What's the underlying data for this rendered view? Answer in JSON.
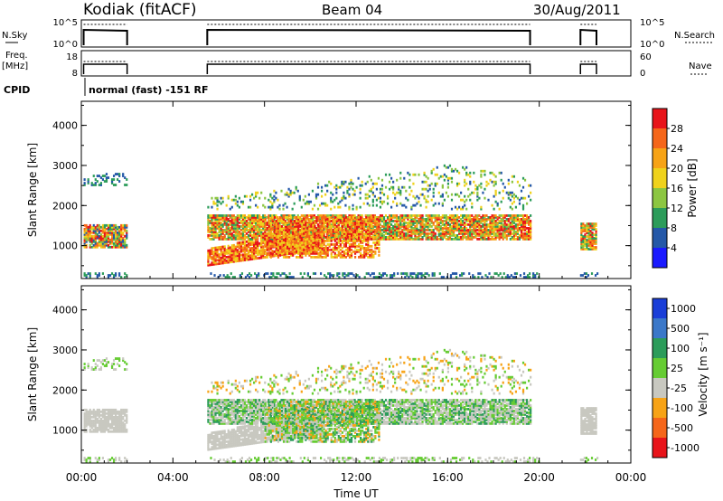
{
  "header": {
    "station": "Kodiak (fitACF)",
    "beam": "Beam 04",
    "date": "30/Aug/2011"
  },
  "strips": {
    "nsky_label": "N.Sky",
    "nsky_ticks": [
      "10^5",
      "10^0"
    ],
    "nsearch_label": "N.Search",
    "nsearch_ticks": [
      "10^5",
      "10^0"
    ],
    "freq_label_1": "Freq.",
    "freq_label_2": "[MHz]",
    "freq_ticks": [
      "18",
      "8"
    ],
    "nave_label": "Nave",
    "nave_ticks": [
      "60",
      "0"
    ],
    "cpid_label": "CPID",
    "cpid_text": "normal (fast) -151 RF"
  },
  "chart_data": [
    {
      "type": "heatmap",
      "panel": "power",
      "ylabel": "Slant Range [km]",
      "y_ticks": [
        "1000",
        "2000",
        "3000",
        "4000"
      ],
      "ylim": [
        180,
        4600
      ],
      "xlim": [
        "00:00",
        "24:00"
      ],
      "colorbar_label": "Power [dB]",
      "colorbar_ticks": [
        "28",
        "24",
        "20",
        "16",
        "12",
        "8",
        "4"
      ],
      "colorbar_colors": [
        "#e8141a",
        "#f5661a",
        "#f7a316",
        "#efd21c",
        "#8cc641",
        "#2c9c5a",
        "#2458a8",
        "#1a1aff"
      ],
      "data_gaps": [
        [
          "02:00",
          "05:30"
        ],
        [
          "20:00",
          "21:45"
        ],
        [
          "22:30",
          "24:00"
        ]
      ]
    },
    {
      "type": "heatmap",
      "panel": "velocity",
      "ylabel": "Slant Range [km]",
      "y_ticks": [
        "1000",
        "2000",
        "3000",
        "4000"
      ],
      "ylim": [
        180,
        4600
      ],
      "xlim": [
        "00:00",
        "24:00"
      ],
      "xlabel": "Time UT",
      "x_ticks": [
        "00:00",
        "04:00",
        "08:00",
        "12:00",
        "16:00",
        "20:00",
        "00:00"
      ],
      "colorbar_label": "Velocity [m s⁻¹]",
      "colorbar_ticks": [
        "1000",
        "500",
        "100",
        "25",
        "-25",
        "-100",
        "-500",
        "-1000"
      ],
      "colorbar_colors": [
        "#1a3ed8",
        "#3b78c9",
        "#2c9c5a",
        "#66cc33",
        "#c8c8c0",
        "#f7a316",
        "#f5661a",
        "#e8141a"
      ]
    }
  ]
}
